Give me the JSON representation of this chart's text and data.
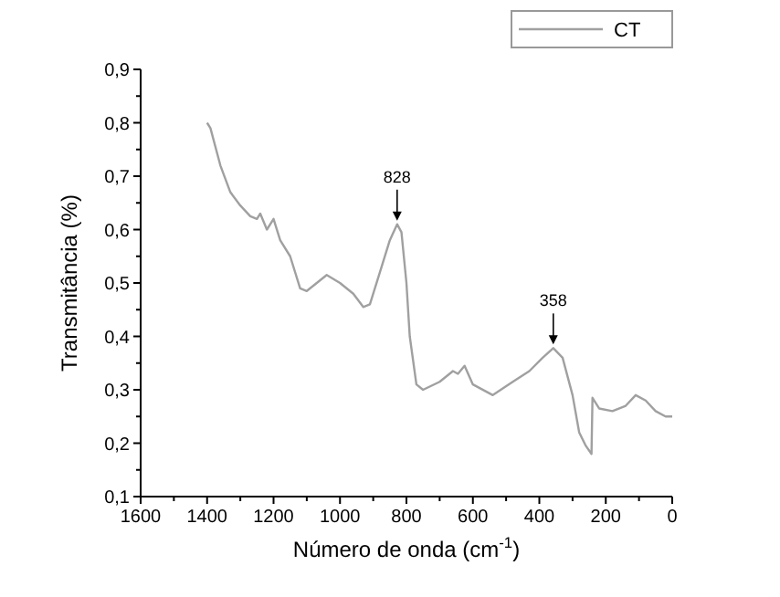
{
  "chart_data": {
    "type": "line",
    "xlabel": "Número de onda (cm$^{-1}$)",
    "ylabel": "Transmitância (%)",
    "xlim": [
      1600,
      0
    ],
    "xticks": [
      1600,
      1400,
      1200,
      1000,
      800,
      600,
      400,
      200,
      0
    ],
    "ylim": [
      0.1,
      0.9
    ],
    "yticks": [
      {
        "value": 0.1,
        "label": "0,1"
      },
      {
        "value": 0.2,
        "label": "0,2"
      },
      {
        "value": 0.3,
        "label": "0,3"
      },
      {
        "value": 0.4,
        "label": "0,4"
      },
      {
        "value": 0.5,
        "label": "0,5"
      },
      {
        "value": 0.6,
        "label": "0,6"
      },
      {
        "value": 0.7,
        "label": "0,7"
      },
      {
        "value": 0.8,
        "label": "0,8"
      },
      {
        "value": 0.9,
        "label": "0,9"
      }
    ],
    "x": [
      1400,
      1390,
      1360,
      1330,
      1300,
      1270,
      1250,
      1240,
      1220,
      1200,
      1180,
      1150,
      1120,
      1100,
      1040,
      1000,
      960,
      930,
      910,
      880,
      850,
      828,
      815,
      800,
      790,
      770,
      750,
      700,
      660,
      645,
      625,
      600,
      540,
      480,
      430,
      390,
      358,
      330,
      300,
      280,
      260,
      243,
      240,
      220,
      180,
      140,
      110,
      80,
      50,
      20,
      0
    ],
    "series": [
      {
        "name": "CT",
        "color": "#a0a0a0",
        "values": [
          0.8,
          0.79,
          0.72,
          0.67,
          0.645,
          0.625,
          0.62,
          0.63,
          0.6,
          0.62,
          0.58,
          0.55,
          0.49,
          0.485,
          0.515,
          0.5,
          0.48,
          0.455,
          0.46,
          0.52,
          0.58,
          0.61,
          0.595,
          0.5,
          0.4,
          0.31,
          0.3,
          0.315,
          0.335,
          0.33,
          0.345,
          0.31,
          0.29,
          0.315,
          0.335,
          0.36,
          0.378,
          0.36,
          0.29,
          0.22,
          0.195,
          0.18,
          0.285,
          0.265,
          0.26,
          0.27,
          0.29,
          0.28,
          0.26,
          0.25,
          0.25
        ]
      }
    ],
    "annotations": [
      {
        "text": "828",
        "x": 828,
        "y": 0.61
      },
      {
        "text": "358",
        "x": 358,
        "y": 0.378
      }
    ],
    "legend": "top right",
    "marker": "none",
    "line_style": "solid"
  }
}
